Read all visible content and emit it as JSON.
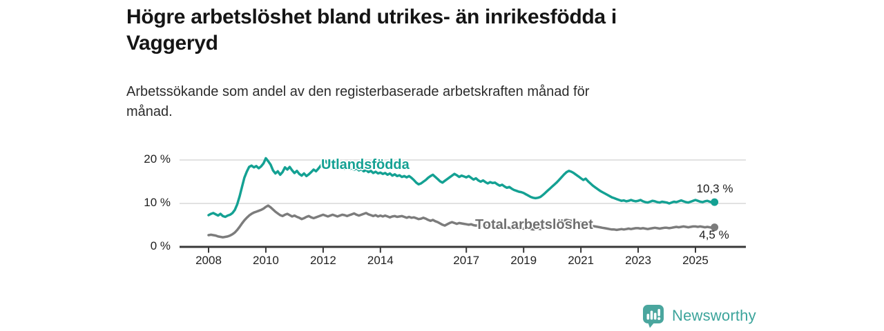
{
  "colors": {
    "accent_teal": "#14a193",
    "series_gray": "#7c7c7c",
    "axis": "#383838",
    "gridline": "#d9d9d9",
    "logo_teal": "#4aa69e",
    "brand_text_teal": "#3ca49b"
  },
  "footer": {
    "brand": "Newsworthy",
    "logo_icon": "bar-chart-speech-bubble-icon"
  },
  "chart_data": {
    "type": "line",
    "title": "Högre arbetslöshet bland utrikes- än inrikesfödda i Vaggeryd",
    "subtitle": "Arbetssökande som andel av den registerbaserade arbetskraften månad för månad.",
    "unit": "%",
    "x_start_year": 2008,
    "points_per_year": 12,
    "x_range": [
      2008.0,
      2025.75
    ],
    "ylim": [
      0,
      21.5
    ],
    "grid": "horizontal",
    "legend_position": "inline-labels",
    "y_ticks": [
      {
        "value": 20,
        "label": "20 %"
      },
      {
        "value": 10,
        "label": "10 %"
      },
      {
        "value": 0,
        "label": "0 %"
      }
    ],
    "x_ticks": [
      {
        "year": 2008,
        "label": "2008"
      },
      {
        "year": 2010,
        "label": "2010"
      },
      {
        "year": 2012,
        "label": "2012"
      },
      {
        "year": 2014,
        "label": "2014"
      },
      {
        "year": 2017,
        "label": "2017"
      },
      {
        "year": 2019,
        "label": "2019"
      },
      {
        "year": 2021,
        "label": "2021"
      },
      {
        "year": 2023,
        "label": "2023"
      },
      {
        "year": 2025,
        "label": "2025"
      }
    ],
    "series": [
      {
        "name": "Utlandsfödda",
        "color": "#14a193",
        "end_value": 10.3,
        "end_label": "10,3 %",
        "values": [
          7.3,
          7.6,
          7.8,
          7.5,
          7.2,
          7.6,
          7.1,
          6.9,
          7.2,
          7.4,
          7.8,
          8.5,
          9.8,
          11.6,
          13.8,
          15.9,
          17.3,
          18.4,
          18.7,
          18.3,
          18.6,
          18.1,
          18.5,
          19.2,
          20.4,
          19.7,
          18.9,
          17.6,
          16.9,
          17.4,
          16.6,
          17.2,
          18.3,
          17.8,
          18.4,
          17.6,
          17.0,
          17.5,
          16.8,
          16.4,
          16.9,
          16.3,
          16.7,
          17.2,
          17.8,
          17.4,
          18.0,
          18.7,
          19.4,
          19.8,
          19.1,
          18.6,
          18.9,
          18.4,
          18.7,
          18.2,
          18.5,
          18.0,
          18.3,
          17.9,
          18.2,
          17.8,
          18.1,
          17.6,
          17.9,
          17.4,
          17.7,
          17.2,
          17.5,
          17.0,
          17.3,
          16.9,
          17.1,
          16.8,
          17.0,
          16.6,
          16.9,
          16.4,
          16.7,
          16.3,
          16.5,
          16.1,
          16.3,
          16.0,
          16.3,
          15.9,
          15.4,
          14.8,
          14.4,
          14.6,
          15.0,
          15.4,
          15.9,
          16.3,
          16.6,
          16.1,
          15.6,
          15.1,
          14.8,
          15.2,
          15.6,
          16.0,
          16.4,
          16.8,
          16.5,
          16.1,
          16.4,
          16.2,
          16.0,
          16.3,
          15.9,
          15.5,
          15.8,
          15.3,
          15.0,
          15.3,
          14.9,
          14.6,
          14.9,
          14.7,
          14.8,
          14.4,
          14.1,
          14.3,
          13.9,
          13.6,
          13.8,
          13.4,
          13.1,
          12.9,
          12.7,
          12.6,
          12.4,
          12.1,
          11.8,
          11.5,
          11.3,
          11.2,
          11.3,
          11.5,
          11.9,
          12.4,
          12.9,
          13.4,
          13.9,
          14.4,
          14.9,
          15.5,
          16.1,
          16.7,
          17.2,
          17.5,
          17.3,
          17.0,
          16.6,
          16.2,
          15.8,
          15.4,
          15.7,
          15.1,
          14.6,
          14.1,
          13.7,
          13.3,
          12.9,
          12.6,
          12.3,
          12.0,
          11.7,
          11.4,
          11.2,
          11.0,
          10.8,
          10.6,
          10.7,
          10.5,
          10.6,
          10.8,
          10.6,
          10.5,
          10.6,
          10.8,
          10.5,
          10.3,
          10.2,
          10.4,
          10.6,
          10.5,
          10.3,
          10.2,
          10.4,
          10.3,
          10.2,
          10.0,
          10.2,
          10.4,
          10.3,
          10.5,
          10.7,
          10.5,
          10.3,
          10.2,
          10.4,
          10.6,
          10.8,
          10.6,
          10.4,
          10.3,
          10.5,
          10.6,
          10.4,
          10.2,
          10.3
        ]
      },
      {
        "name": "Total arbetslöshet",
        "color": "#7c7c7c",
        "end_value": 4.5,
        "end_label": "4,5 %",
        "values": [
          2.7,
          2.8,
          2.7,
          2.6,
          2.4,
          2.3,
          2.2,
          2.3,
          2.4,
          2.6,
          2.9,
          3.3,
          3.9,
          4.6,
          5.4,
          6.1,
          6.7,
          7.2,
          7.6,
          7.9,
          8.1,
          8.3,
          8.5,
          8.8,
          9.2,
          9.5,
          9.1,
          8.6,
          8.1,
          7.7,
          7.3,
          7.1,
          7.4,
          7.6,
          7.3,
          7.0,
          7.2,
          6.9,
          6.7,
          6.4,
          6.6,
          6.9,
          7.1,
          6.8,
          6.6,
          6.8,
          7.0,
          7.2,
          7.4,
          7.2,
          7.0,
          7.2,
          7.4,
          7.2,
          7.0,
          7.2,
          7.4,
          7.3,
          7.1,
          7.3,
          7.5,
          7.7,
          7.4,
          7.2,
          7.4,
          7.6,
          7.8,
          7.5,
          7.3,
          7.1,
          7.3,
          7.0,
          7.2,
          7.0,
          7.2,
          7.0,
          6.8,
          7.0,
          7.1,
          6.9,
          7.0,
          7.1,
          6.9,
          6.7,
          6.9,
          6.7,
          6.8,
          6.6,
          6.4,
          6.5,
          6.7,
          6.5,
          6.2,
          6.0,
          6.2,
          5.9,
          5.7,
          5.4,
          5.1,
          4.9,
          5.2,
          5.5,
          5.7,
          5.5,
          5.3,
          5.5,
          5.4,
          5.3,
          5.2,
          5.1,
          5.2,
          5.0,
          4.9,
          5.0,
          4.9,
          4.8,
          4.9,
          4.8,
          4.7,
          4.8,
          4.7,
          4.6,
          4.7,
          4.5,
          4.4,
          4.5,
          4.4,
          4.3,
          4.4,
          4.3,
          4.2,
          4.3,
          4.2,
          4.3,
          4.2,
          4.1,
          4.0,
          4.1,
          4.2,
          4.1,
          4.3,
          4.4,
          4.6,
          4.8,
          5.0,
          5.2,
          5.5,
          5.8,
          6.0,
          6.1,
          6.2,
          6.1,
          6.0,
          5.9,
          5.8,
          5.7,
          5.6,
          5.4,
          5.2,
          5.0,
          4.9,
          4.8,
          4.7,
          4.6,
          4.5,
          4.4,
          4.3,
          4.2,
          4.1,
          4.0,
          4.0,
          3.9,
          4.0,
          4.1,
          4.0,
          4.1,
          4.2,
          4.1,
          4.2,
          4.3,
          4.3,
          4.2,
          4.3,
          4.2,
          4.1,
          4.2,
          4.3,
          4.4,
          4.3,
          4.2,
          4.3,
          4.4,
          4.4,
          4.3,
          4.4,
          4.5,
          4.6,
          4.5,
          4.6,
          4.7,
          4.6,
          4.5,
          4.6,
          4.7,
          4.7,
          4.6,
          4.7,
          4.6,
          4.5,
          4.6,
          4.5,
          4.4,
          4.5
        ]
      }
    ]
  }
}
